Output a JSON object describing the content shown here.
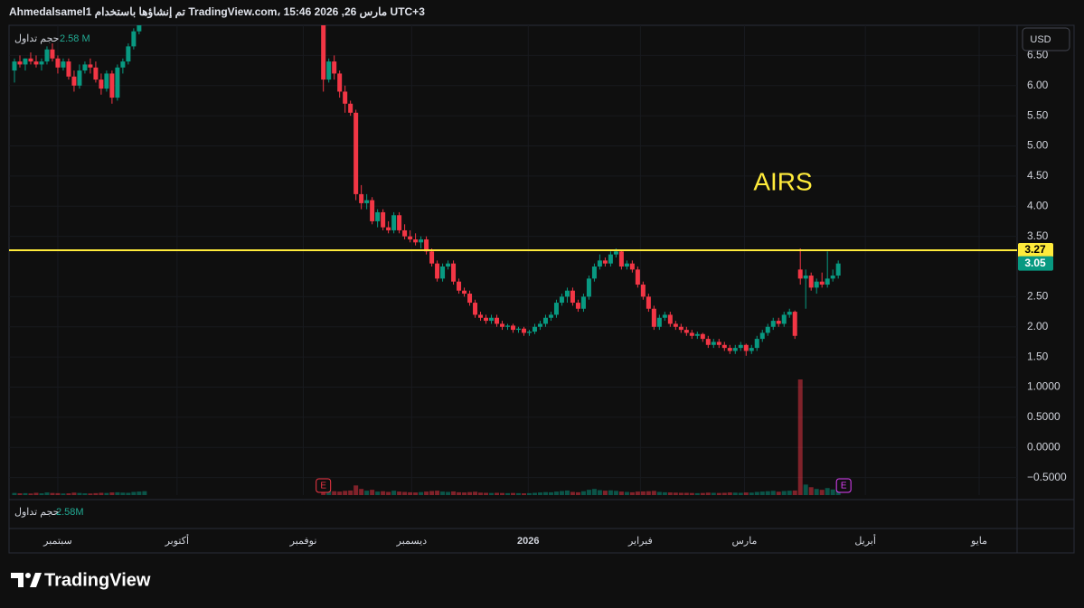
{
  "header": "Ahmedalsamel1 تم إنشاؤها باستخدام TradingView.com، 15:46 2026 ,26 مارس UTC+3",
  "logo": "TradingView",
  "currency": "USD",
  "chart_data": {
    "type": "candlestick",
    "annotation": "AIRS",
    "volume_title": "حجم تداول",
    "volume_label_top": "2.58 M",
    "volume_label_bottom": "2.58M",
    "up_color": "#089981",
    "down_color": "#f23645",
    "hline_value": 3.27,
    "hline_color": "#ffeb3b",
    "xlim": [
      -1,
      185
    ],
    "ylim": [
      -0.79,
      7.0
    ],
    "grid": true,
    "yticks": [
      {
        "value": 6.5,
        "label": "6.50"
      },
      {
        "value": 6,
        "label": "6.00"
      },
      {
        "value": 5.5,
        "label": "5.50"
      },
      {
        "value": 5,
        "label": "5.00"
      },
      {
        "value": 4.5,
        "label": "4.50"
      },
      {
        "value": 4,
        "label": "4.00"
      },
      {
        "value": 3.5,
        "label": "3.50"
      },
      {
        "value": 2.5,
        "label": "2.50"
      },
      {
        "value": 2,
        "label": "2.00"
      },
      {
        "value": 1.5,
        "label": "1.50"
      },
      {
        "value": 1,
        "label": "1.0000"
      },
      {
        "value": 0.5,
        "label": "0.5000"
      },
      {
        "value": 0,
        "label": "0.0000"
      },
      {
        "value": -0.5,
        "label": "−0.5000"
      }
    ],
    "xticks": [
      {
        "value": 8,
        "label": "سبتمبر"
      },
      {
        "value": 30,
        "label": "أكتوبر"
      },
      {
        "value": 53.3,
        "label": "نوفمبر"
      },
      {
        "value": 73.3,
        "label": "ديسمبر"
      },
      {
        "value": 94.8,
        "label": "2026"
      },
      {
        "value": 115.5,
        "label": "فبراير"
      },
      {
        "value": 134.7,
        "label": "مارس"
      },
      {
        "value": 157,
        "label": "أبريل"
      },
      {
        "value": 178,
        "label": "مايو"
      }
    ],
    "events": [
      {
        "index": 57,
        "label": "E"
      },
      {
        "index": 153,
        "label": "E"
      }
    ],
    "candles": [
      [
        6.25,
        6.45,
        6.05,
        6.4
      ],
      [
        6.4,
        6.5,
        6.3,
        6.35
      ],
      [
        6.35,
        6.45,
        6.25,
        6.45
      ],
      [
        6.45,
        6.55,
        6.35,
        6.4
      ],
      [
        6.4,
        6.5,
        6.3,
        6.35
      ],
      [
        6.35,
        6.45,
        6.25,
        6.4
      ],
      [
        6.4,
        6.65,
        6.35,
        6.6
      ],
      [
        6.6,
        6.7,
        6.4,
        6.45
      ],
      [
        6.45,
        6.5,
        6.2,
        6.3
      ],
      [
        6.3,
        6.45,
        6.25,
        6.4
      ],
      [
        6.4,
        6.45,
        6.1,
        6.15
      ],
      [
        6.15,
        6.25,
        5.9,
        6.0
      ],
      [
        6.0,
        6.35,
        5.95,
        6.25
      ],
      [
        6.25,
        6.4,
        6.2,
        6.35
      ],
      [
        6.35,
        6.45,
        6.2,
        6.3
      ],
      [
        6.3,
        6.4,
        6.05,
        6.1
      ],
      [
        6.1,
        6.2,
        5.85,
        5.95
      ],
      [
        5.95,
        6.25,
        5.9,
        6.2
      ],
      [
        6.2,
        6.25,
        5.7,
        5.8
      ],
      [
        5.8,
        6.35,
        5.75,
        6.3
      ],
      [
        6.3,
        6.45,
        6.2,
        6.4
      ],
      [
        6.4,
        6.7,
        6.35,
        6.65
      ],
      [
        6.65,
        6.95,
        6.6,
        6.9
      ],
      [
        6.9,
        7.2,
        6.85,
        7.1
      ],
      [
        7.1,
        7.4,
        7.0,
        7.3
      ],
      null,
      null,
      null,
      null,
      null,
      null,
      null,
      null,
      null,
      null,
      null,
      null,
      null,
      null,
      null,
      null,
      null,
      null,
      null,
      null,
      null,
      null,
      null,
      null,
      null,
      null,
      null,
      null,
      null,
      null,
      null,
      null,
      [
        7.3,
        7.35,
        5.9,
        6.1
      ],
      [
        6.1,
        6.45,
        6.05,
        6.4
      ],
      [
        6.4,
        6.5,
        6.1,
        6.2
      ],
      [
        6.2,
        6.25,
        5.8,
        5.9
      ],
      [
        5.9,
        6.0,
        5.55,
        5.7
      ],
      [
        5.7,
        5.75,
        5.5,
        5.55
      ],
      [
        5.55,
        5.6,
        4.1,
        4.2
      ],
      [
        4.2,
        4.35,
        3.95,
        4.05
      ],
      [
        4.05,
        4.2,
        3.95,
        4.1
      ],
      [
        4.1,
        4.15,
        3.7,
        3.75
      ],
      [
        3.75,
        3.95,
        3.65,
        3.9
      ],
      [
        3.9,
        3.95,
        3.6,
        3.65
      ],
      [
        3.65,
        3.75,
        3.55,
        3.6
      ],
      [
        3.6,
        3.9,
        3.55,
        3.85
      ],
      [
        3.85,
        3.9,
        3.55,
        3.6
      ],
      [
        3.6,
        3.7,
        3.45,
        3.5
      ],
      [
        3.5,
        3.6,
        3.4,
        3.45
      ],
      [
        3.45,
        3.55,
        3.35,
        3.4
      ],
      [
        3.4,
        3.5,
        3.3,
        3.45
      ],
      [
        3.45,
        3.5,
        3.2,
        3.25
      ],
      [
        3.25,
        3.3,
        3.0,
        3.05
      ],
      [
        3.05,
        3.1,
        2.75,
        2.8
      ],
      [
        2.8,
        3.05,
        2.75,
        3.0
      ],
      [
        3.0,
        3.1,
        2.95,
        3.05
      ],
      [
        3.05,
        3.1,
        2.7,
        2.75
      ],
      [
        2.75,
        2.8,
        2.55,
        2.6
      ],
      [
        2.6,
        2.65,
        2.5,
        2.55
      ],
      [
        2.55,
        2.6,
        2.35,
        2.4
      ],
      [
        2.4,
        2.45,
        2.15,
        2.2
      ],
      [
        2.2,
        2.25,
        2.1,
        2.15
      ],
      [
        2.15,
        2.2,
        2.05,
        2.1
      ],
      [
        2.1,
        2.2,
        2.05,
        2.15
      ],
      [
        2.15,
        2.2,
        2.0,
        2.05
      ],
      [
        2.05,
        2.1,
        1.95,
        2.0
      ],
      [
        2.0,
        2.05,
        1.95,
        2.02
      ],
      [
        2.02,
        2.05,
        1.9,
        1.95
      ],
      [
        1.95,
        2.0,
        1.9,
        1.97
      ],
      [
        1.97,
        2.0,
        1.85,
        1.9
      ],
      [
        1.9,
        1.95,
        1.85,
        1.92
      ],
      [
        1.92,
        2.05,
        1.88,
        2.0
      ],
      [
        2.0,
        2.1,
        1.95,
        2.05
      ],
      [
        2.05,
        2.2,
        2.0,
        2.15
      ],
      [
        2.15,
        2.25,
        2.1,
        2.2
      ],
      [
        2.2,
        2.45,
        2.15,
        2.4
      ],
      [
        2.4,
        2.55,
        2.35,
        2.5
      ],
      [
        2.5,
        2.65,
        2.4,
        2.6
      ],
      [
        2.6,
        2.65,
        2.35,
        2.4
      ],
      [
        2.4,
        2.45,
        2.25,
        2.3
      ],
      [
        2.3,
        2.55,
        2.25,
        2.5
      ],
      [
        2.5,
        2.85,
        2.45,
        2.8
      ],
      [
        2.8,
        3.05,
        2.75,
        3.0
      ],
      [
        3.0,
        3.2,
        2.95,
        3.1
      ],
      [
        3.1,
        3.15,
        3.0,
        3.05
      ],
      [
        3.05,
        3.25,
        3.0,
        3.2
      ],
      [
        3.2,
        3.3,
        3.15,
        3.25
      ],
      [
        3.25,
        3.28,
        2.95,
        3.0
      ],
      [
        3.0,
        3.1,
        2.95,
        3.05
      ],
      [
        3.05,
        3.1,
        2.9,
        2.95
      ],
      [
        2.95,
        3.0,
        2.65,
        2.7
      ],
      [
        2.7,
        2.75,
        2.45,
        2.5
      ],
      [
        2.5,
        2.55,
        2.25,
        2.3
      ],
      [
        2.3,
        2.35,
        1.95,
        2.0
      ],
      [
        2.0,
        2.2,
        1.95,
        2.15
      ],
      [
        2.15,
        2.25,
        2.1,
        2.2
      ],
      [
        2.2,
        2.25,
        2.0,
        2.05
      ],
      [
        2.05,
        2.1,
        1.95,
        2.0
      ],
      [
        2.0,
        2.05,
        1.9,
        1.95
      ],
      [
        1.95,
        2.0,
        1.85,
        1.9
      ],
      [
        1.9,
        1.95,
        1.8,
        1.85
      ],
      [
        1.85,
        1.92,
        1.8,
        1.88
      ],
      [
        1.88,
        1.9,
        1.75,
        1.8
      ],
      [
        1.8,
        1.85,
        1.65,
        1.7
      ],
      [
        1.7,
        1.8,
        1.65,
        1.75
      ],
      [
        1.75,
        1.8,
        1.65,
        1.7
      ],
      [
        1.7,
        1.75,
        1.6,
        1.65
      ],
      [
        1.65,
        1.7,
        1.55,
        1.6
      ],
      [
        1.6,
        1.7,
        1.55,
        1.65
      ],
      [
        1.65,
        1.75,
        1.6,
        1.7
      ],
      [
        1.7,
        1.72,
        1.52,
        1.6
      ],
      [
        1.6,
        1.7,
        1.55,
        1.65
      ],
      [
        1.65,
        1.85,
        1.6,
        1.8
      ],
      [
        1.8,
        1.95,
        1.75,
        1.9
      ],
      [
        1.9,
        2.05,
        1.85,
        2.0
      ],
      [
        2.0,
        2.15,
        1.95,
        2.1
      ],
      [
        2.1,
        2.15,
        2.0,
        2.05
      ],
      [
        2.05,
        2.25,
        2.0,
        2.2
      ],
      [
        2.2,
        2.3,
        2.15,
        2.25
      ],
      [
        2.25,
        2.27,
        1.8,
        1.85
      ],
      [
        2.95,
        3.3,
        2.7,
        2.8
      ],
      [
        2.8,
        2.95,
        2.3,
        2.85
      ],
      [
        2.85,
        2.9,
        2.6,
        2.65
      ],
      [
        2.65,
        2.8,
        2.55,
        2.75
      ],
      [
        2.75,
        2.9,
        2.65,
        2.7
      ],
      [
        2.7,
        3.25,
        2.65,
        2.8
      ],
      [
        2.8,
        2.95,
        2.75,
        2.85
      ],
      [
        2.85,
        3.1,
        2.8,
        3.05
      ]
    ],
    "volumes": [
      1.2,
      1.0,
      1.1,
      0.9,
      1.3,
      1.0,
      1.5,
      1.2,
      1.1,
      0.9,
      1.0,
      1.4,
      1.2,
      1.0,
      0.9,
      1.1,
      1.3,
      1.2,
      1.5,
      1.6,
      1.4,
      1.3,
      1.8,
      2.0,
      2.2,
      null,
      null,
      null,
      null,
      null,
      null,
      null,
      null,
      null,
      null,
      null,
      null,
      null,
      null,
      null,
      null,
      null,
      null,
      null,
      null,
      null,
      null,
      null,
      null,
      null,
      null,
      null,
      null,
      null,
      null,
      null,
      null,
      3.0,
      2.5,
      2.2,
      2.0,
      2.4,
      2.6,
      5.5,
      3.5,
      2.5,
      3.0,
      2.0,
      2.2,
      1.8,
      2.5,
      2.0,
      1.8,
      1.6,
      1.5,
      1.7,
      2.0,
      2.3,
      2.5,
      2.0,
      1.8,
      2.1,
      1.6,
      1.5,
      1.7,
      1.9,
      1.4,
      1.3,
      1.2,
      1.3,
      1.2,
      1.1,
      1.2,
      1.1,
      1.0,
      1.1,
      1.3,
      1.5,
      1.7,
      1.6,
      2.0,
      2.3,
      2.6,
      1.8,
      1.6,
      2.2,
      3.0,
      3.5,
      2.8,
      2.5,
      2.7,
      2.4,
      2.0,
      1.8,
      1.6,
      2.0,
      2.1,
      2.2,
      2.4,
      1.8,
      1.6,
      1.5,
      1.4,
      1.3,
      1.3,
      1.2,
      1.1,
      1.2,
      1.4,
      1.3,
      1.2,
      1.3,
      1.5,
      1.4,
      1.3,
      1.5,
      1.4,
      1.8,
      2.0,
      2.2,
      2.4,
      1.9,
      2.3,
      2.5,
      2.6,
      66,
      6.0,
      4.5,
      3.5,
      3.0,
      4.0,
      3.2,
      2.58
    ]
  }
}
